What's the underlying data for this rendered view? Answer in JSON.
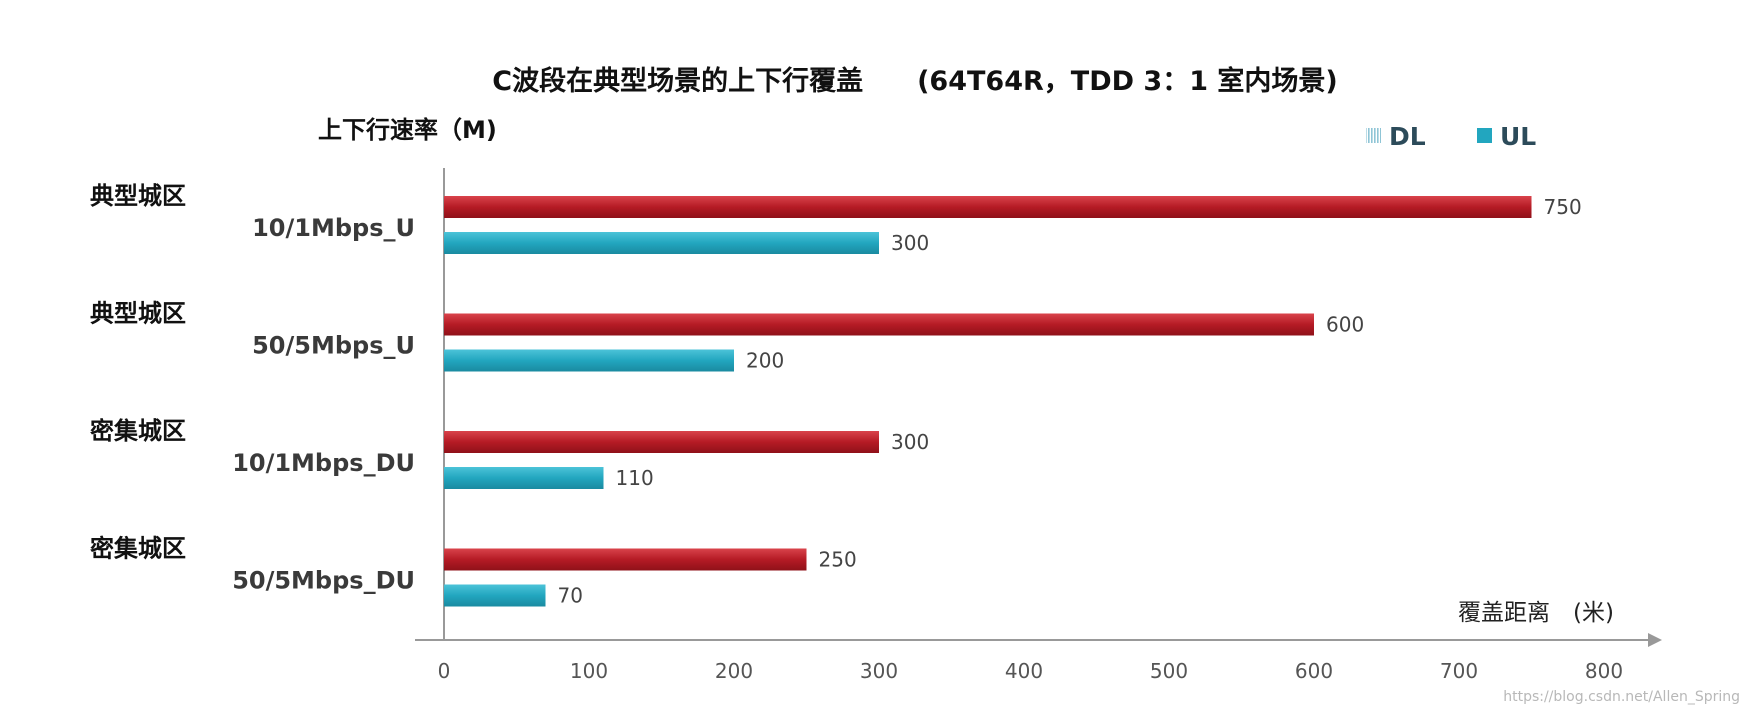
{
  "chart_data": {
    "type": "bar",
    "orientation": "horizontal",
    "title": "C波段在典型场景的上下行覆盖　　(64T64R，TDD 3：1 室内场景)",
    "ylabel": "上下行速率（M)",
    "xlabel": "覆盖距离　(米)",
    "categories": [
      {
        "scene": "典型城区",
        "rate": "10/1Mbps_U"
      },
      {
        "scene": "典型城区",
        "rate": "50/5Mbps_U"
      },
      {
        "scene": "密集城区",
        "rate": "10/1Mbps_DU"
      },
      {
        "scene": "密集城区",
        "rate": "50/5Mbps_DU"
      }
    ],
    "series": [
      {
        "name": "DL",
        "color": "#b51b25",
        "values": [
          750,
          600,
          300,
          250
        ]
      },
      {
        "name": "UL",
        "color": "#22a6bf",
        "values": [
          300,
          200,
          110,
          70
        ]
      }
    ],
    "data_labels": [
      [
        "750",
        "300"
      ],
      [
        "600",
        "200"
      ],
      [
        "300",
        "110"
      ],
      [
        "250",
        "70"
      ]
    ],
    "xlim": [
      0,
      800
    ],
    "xticks": [
      0,
      100,
      200,
      300,
      400,
      500,
      600,
      700,
      800
    ],
    "grid": false,
    "legend": "top-right",
    "legend_entries": [
      "DL",
      "UL"
    ]
  },
  "watermark": "https://blog.csdn.net/Allen_Spring"
}
